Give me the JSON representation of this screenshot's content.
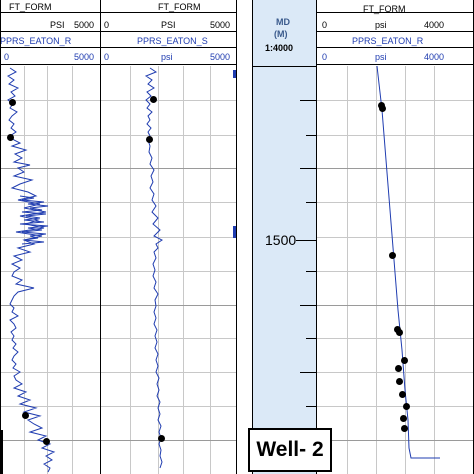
{
  "track1": {
    "curve1": {
      "name": "FT_FORM",
      "unit": "PSI",
      "min": "",
      "max": "5000"
    },
    "curve2": {
      "name": "PPRS_EATON_R",
      "unit": "psi",
      "min": "0",
      "max": "5000"
    }
  },
  "track2": {
    "curve1": {
      "name": "FT_FORM",
      "unit": "PSI",
      "min": "0",
      "max": "5000"
    },
    "curve2": {
      "name": "PPRS_EATON_S",
      "unit": "psi",
      "min": "0",
      "max": "5000"
    }
  },
  "depth_track": {
    "title": "MD",
    "unit": "(M)",
    "scale": "1:4000",
    "depth_label": "1500"
  },
  "track3": {
    "curve1": {
      "name": "FT_FORM",
      "unit": "psi",
      "min": "0",
      "max": "4000"
    },
    "curve2": {
      "name": "PPRS_EATON_R",
      "unit": "psi",
      "min": "0",
      "max": "4000"
    }
  },
  "well_label": "Well- 2",
  "colors": {
    "curve": "#1f3cb0",
    "points": "#000000",
    "depth_track": "#dbe9f7"
  }
}
